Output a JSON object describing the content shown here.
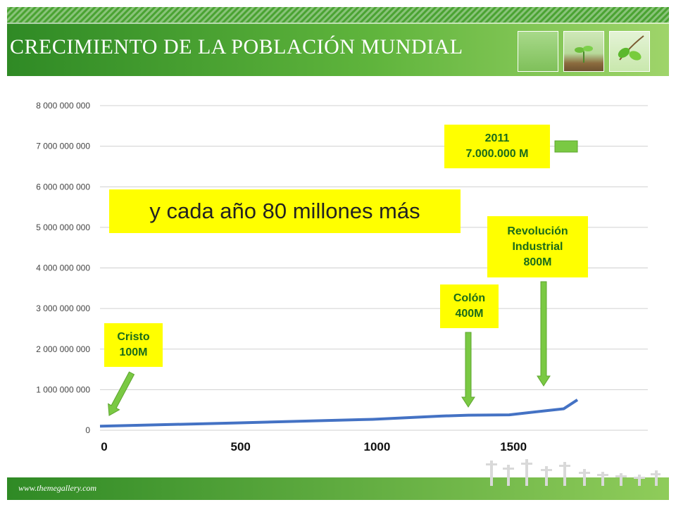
{
  "slide": {
    "title": "CRECIMIENTO DE LA POBLACIÓN MUNDIAL",
    "footer_url": "www.themegallery.com"
  },
  "callouts": {
    "cristo": {
      "line1": "Cristo",
      "line2": "100M"
    },
    "colon": {
      "line1": "Colón",
      "line2": "400M"
    },
    "revolucion": {
      "line1": "Revolución",
      "line2": "Industrial",
      "line3": "800M"
    },
    "y2011": {
      "line1": "2011",
      "line2": "7.000.000 M"
    },
    "annotation": "y cada año 80 millones más"
  },
  "colors": {
    "header_green": "#3f9a2e",
    "header_light": "#8ccf5a",
    "callout_yellow": "#ffff00",
    "callout_text": "#1a6b1a",
    "series_line": "#4472c4",
    "arrow_green": "#7ac943"
  },
  "chart_data": {
    "type": "line",
    "xlim": [
      0,
      1750
    ],
    "ylim": [
      0,
      8000000000
    ],
    "y_ticks": [
      "0",
      "1 000 000 000",
      "2 000 000 000",
      "3 000 000 000",
      "4 000 000 000",
      "5 000 000 000",
      "6 000 000 000",
      "7 000 000 000",
      "8 000 000 000"
    ],
    "y_tick_values": [
      0,
      1000000000,
      2000000000,
      3000000000,
      4000000000,
      5000000000,
      6000000000,
      7000000000,
      8000000000
    ],
    "x_ticks": [
      "0",
      "500",
      "1000",
      "1500"
    ],
    "x_tick_values": [
      0,
      500,
      1000,
      1500
    ],
    "grid": true,
    "series": [
      {
        "x": [
          0,
          500,
          1000,
          1250,
          1350,
          1500,
          1700,
          1750
        ],
        "values": [
          100000000,
          180000000,
          270000000,
          350000000,
          370000000,
          380000000,
          530000000,
          750000000
        ]
      }
    ]
  }
}
